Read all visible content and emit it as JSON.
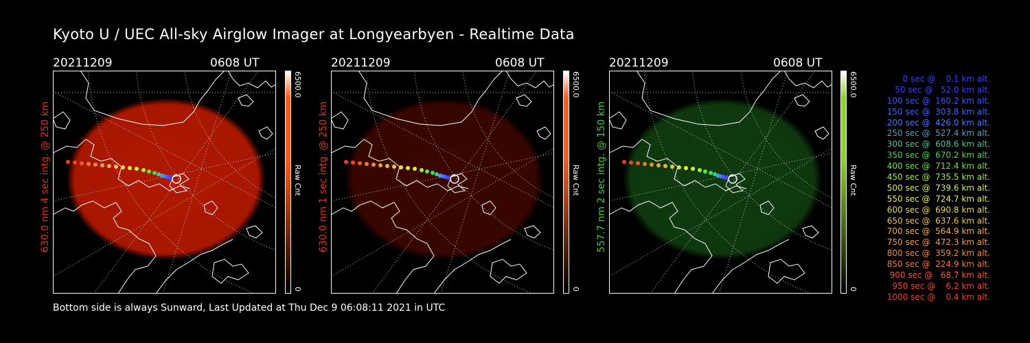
{
  "title": "Kyoto U / UEC All-sky Airglow Imager at Longyearbyen - Realtime Data",
  "footer": "Bottom side is always Sunward, Last Updated at Thu Dec  9 06:08:11 2021 in UTC",
  "panels": [
    {
      "date": "20211209",
      "time": "0608 UT",
      "label": "630.0 nm 4 sec intg. @ 250 km",
      "label_color": "#e0321e",
      "cbar_max": "6500.0",
      "cbar_min": "0",
      "cbar_unit": "Raw Cnt",
      "glow_color": "#b01800",
      "cbar_color": "#ff5a1e"
    },
    {
      "date": "20211209",
      "time": "0608 UT",
      "label": "630.0 nm 1 sec intg. @ 250 km",
      "label_color": "#e0321e",
      "cbar_max": "6500.0",
      "cbar_min": "0",
      "cbar_unit": "Raw Cnt",
      "glow_color": "#3a0600",
      "cbar_color": "#ff5a1e"
    },
    {
      "date": "20211209",
      "time": "0608 UT",
      "label": "557.7 nm 2 sec intg. @ 150 km",
      "label_color": "#3ccc3c",
      "cbar_max": "6500.0",
      "cbar_min": "0",
      "cbar_unit": "Raw Cnt",
      "glow_color": "#0f3a0f",
      "cbar_color": "#8cd21e"
    }
  ],
  "legend": [
    {
      "text": "   0 sec @    0.1 km alt.",
      "color": "#3c3cff"
    },
    {
      "text": "  50 sec @   52.0 km alt.",
      "color": "#3c3cff"
    },
    {
      "text": " 100 sec @  160.2 km alt.",
      "color": "#3c50ff"
    },
    {
      "text": " 150 sec @  303.8 km alt.",
      "color": "#3c64ff"
    },
    {
      "text": " 200 sec @  426.0 km alt.",
      "color": "#5078ff"
    },
    {
      "text": " 250 sec @  527.4 km alt.",
      "color": "#50a0c8"
    },
    {
      "text": " 300 sec @  608.6 km alt.",
      "color": "#3cc8a0"
    },
    {
      "text": " 350 sec @  670.2 km alt.",
      "color": "#3cdc50"
    },
    {
      "text": " 400 sec @  712.4 km alt.",
      "color": "#64e63c"
    },
    {
      "text": " 450 sec @  735.5 km alt.",
      "color": "#a0f03c"
    },
    {
      "text": " 500 sec @  739.6 km alt.",
      "color": "#d2f03c"
    },
    {
      "text": " 550 sec @  724.7 km alt.",
      "color": "#f0f03c"
    },
    {
      "text": " 600 sec @  690.8 km alt.",
      "color": "#f0dc3c"
    },
    {
      "text": " 650 sec @  637.6 km alt.",
      "color": "#f0c83c"
    },
    {
      "text": " 700 sec @  564.9 km alt.",
      "color": "#f0b43c"
    },
    {
      "text": " 750 sec @  472.3 km alt.",
      "color": "#f0a03c"
    },
    {
      "text": " 800 sec @  359.2 km alt.",
      "color": "#f08c3c"
    },
    {
      "text": " 850 sec @  224.9 km alt.",
      "color": "#f07832"
    },
    {
      "text": " 900 sec @   68.7 km alt.",
      "color": "#f05a28"
    },
    {
      "text": " 950 sec @    6.2 km alt.",
      "color": "#f04628"
    },
    {
      "text": "1000 sec @    0.4 km alt.",
      "color": "#f03c28"
    }
  ]
}
